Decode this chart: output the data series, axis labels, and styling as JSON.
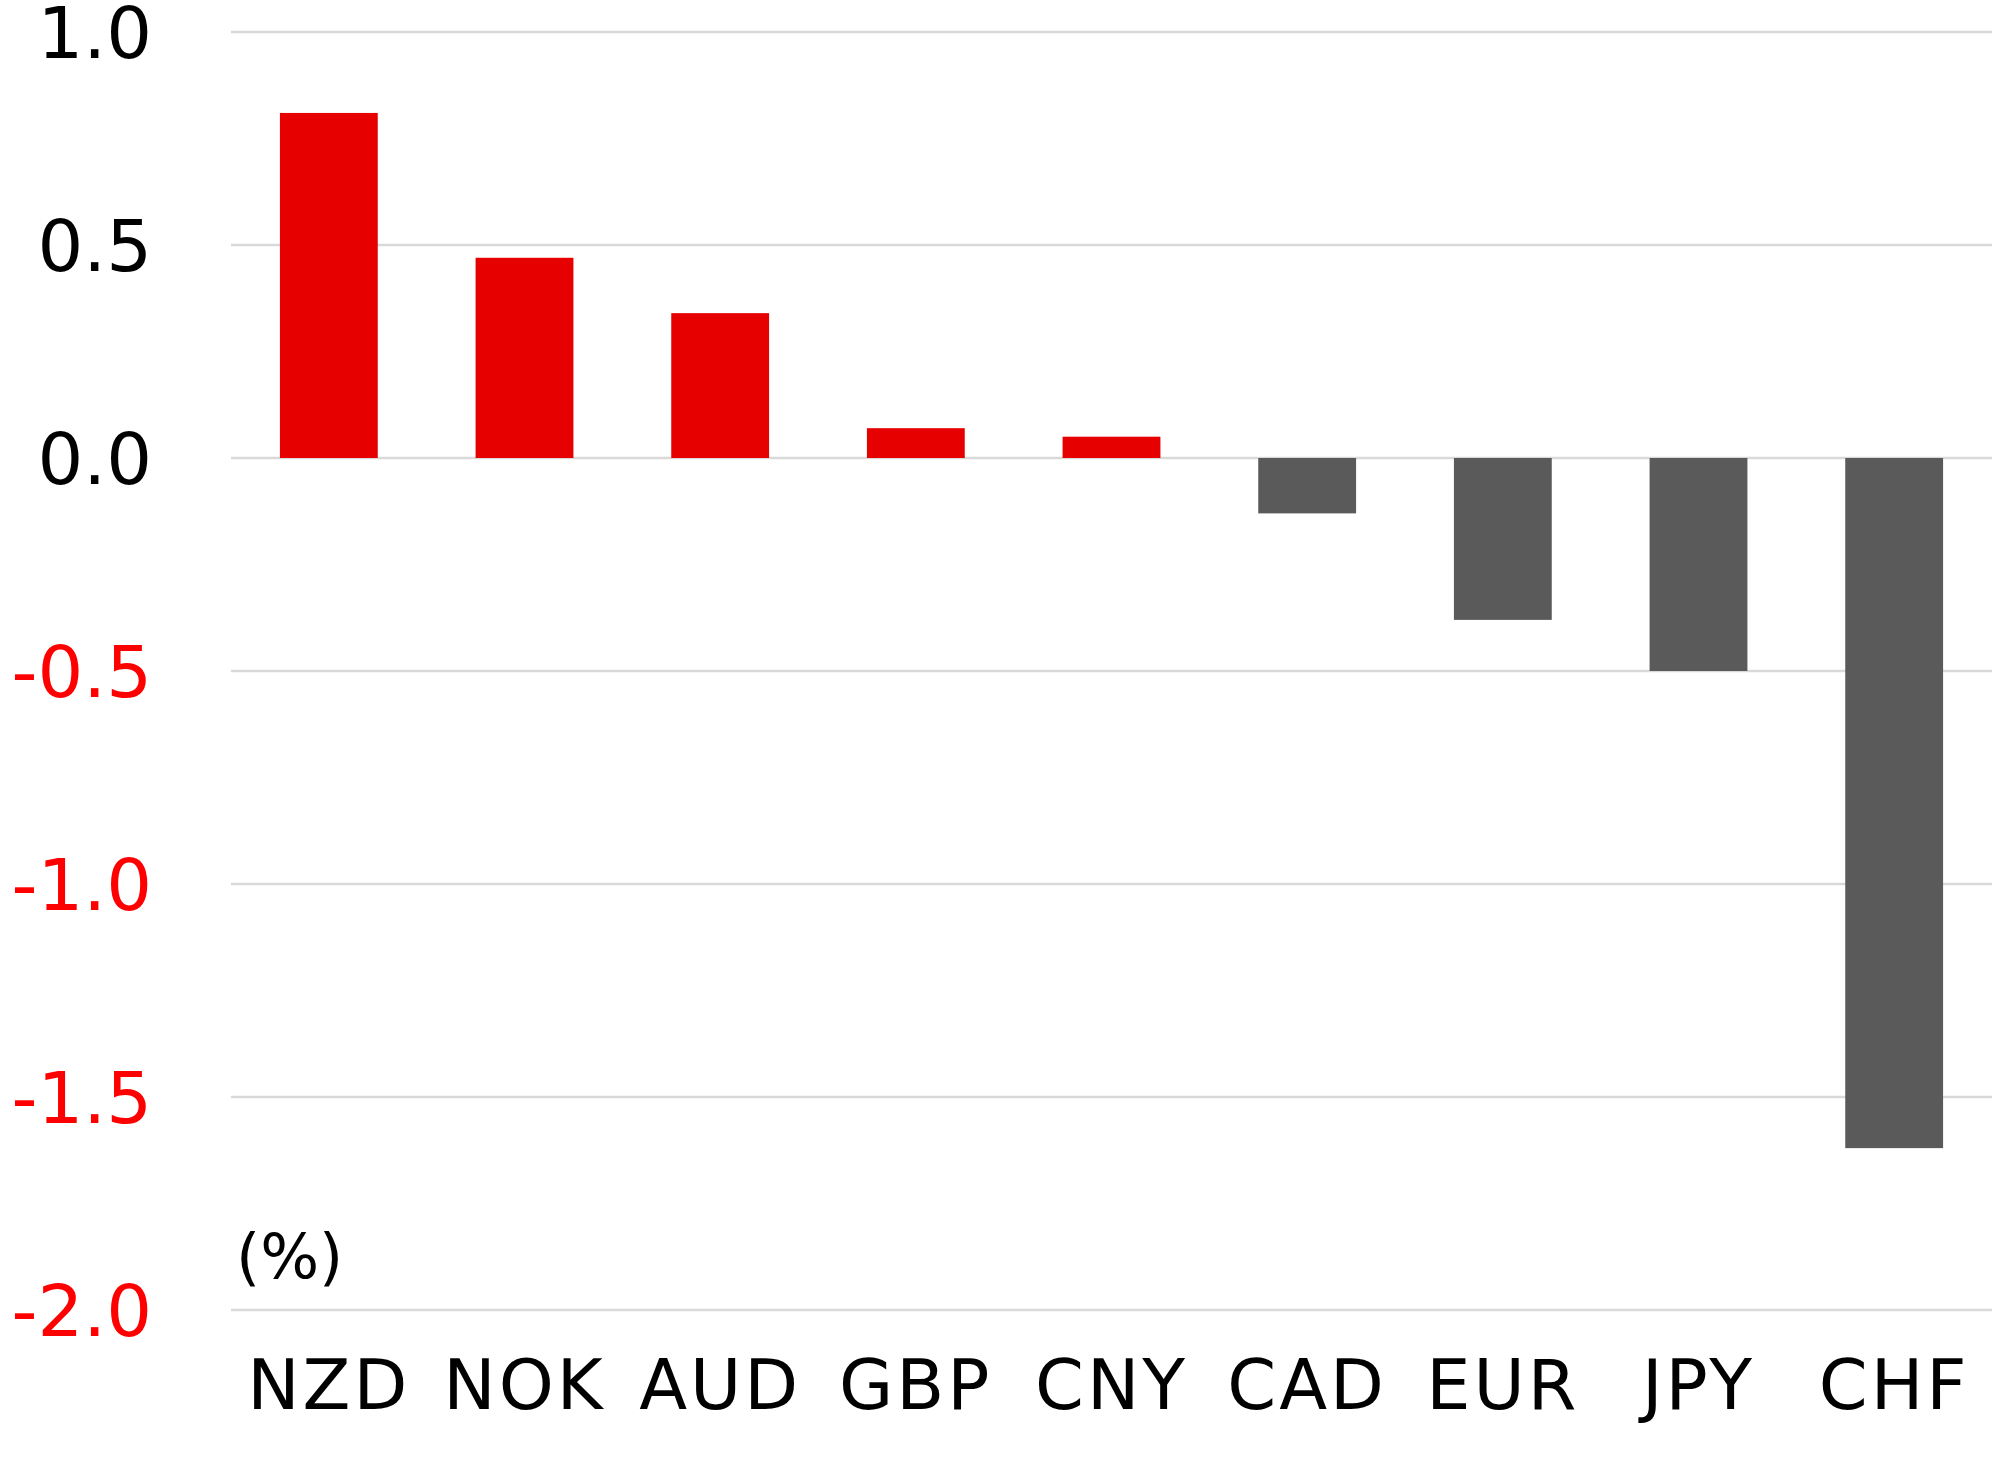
{
  "chart_data": {
    "type": "bar",
    "ylabel": "(%)",
    "categories": [
      "NZD",
      "NOK",
      "AUD",
      "GBP",
      "CNY",
      "CAD",
      "EUR",
      "JPY",
      "CHF"
    ],
    "values": [
      0.81,
      0.47,
      0.34,
      0.07,
      0.05,
      -0.13,
      -0.38,
      -0.5,
      -1.62
    ],
    "colors": [
      "#e60000",
      "#e60000",
      "#e60000",
      "#e60000",
      "#e60000",
      "#5a5a5a",
      "#5a5a5a",
      "#5a5a5a",
      "#5a5a5a"
    ],
    "ylim": [
      -2,
      1
    ],
    "yticks": [
      {
        "value": -2,
        "label": "-2.0"
      },
      -1.5,
      {
        "value": -1,
        "label": "-1.0"
      },
      -0.5,
      {
        "value": 0,
        "label": "0.0"
      },
      0.5,
      {
        "value": 1,
        "label": "1.0"
      }
    ],
    "grid": "y"
  }
}
